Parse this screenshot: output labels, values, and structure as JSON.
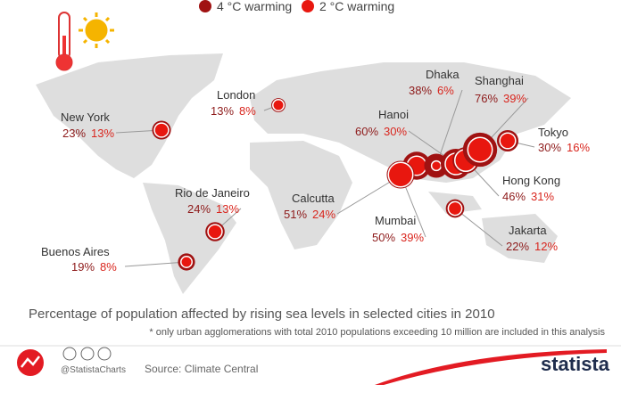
{
  "legend": [
    {
      "label": "4 °C warming",
      "color": "#a01212"
    },
    {
      "label": "2 °C warming",
      "color": "#e8170f"
    }
  ],
  "cities": [
    {
      "name": "New York",
      "values": [
        23,
        13
      ],
      "value_labels": [
        "23%",
        "13%"
      ]
    },
    {
      "name": "London",
      "values": [
        13,
        8
      ],
      "value_labels": [
        "13%",
        "8%"
      ]
    },
    {
      "name": "Rio de Janeiro",
      "values": [
        24,
        13
      ],
      "value_labels": [
        "24%",
        "13%"
      ]
    },
    {
      "name": "Buenos Aires",
      "values": [
        19,
        8
      ],
      "value_labels": [
        "19%",
        "8%"
      ]
    },
    {
      "name": "Calcutta",
      "values": [
        51,
        24
      ],
      "value_labels": [
        "51%",
        "24%"
      ]
    },
    {
      "name": "Mumbai",
      "values": [
        50,
        39
      ],
      "value_labels": [
        "50%",
        "39%"
      ]
    },
    {
      "name": "Dhaka",
      "values": [
        38,
        6
      ],
      "value_labels": [
        "38%",
        "6%"
      ]
    },
    {
      "name": "Hanoi",
      "values": [
        60,
        30
      ],
      "value_labels": [
        "60%",
        "30%"
      ]
    },
    {
      "name": "Hong Kong",
      "values": [
        46,
        31
      ],
      "value_labels": [
        "46%",
        "31%"
      ]
    },
    {
      "name": "Shanghai",
      "values": [
        76,
        39
      ],
      "value_labels": [
        "76%",
        "39%"
      ]
    },
    {
      "name": "Tokyo",
      "values": [
        30,
        16
      ],
      "value_labels": [
        "30%",
        "16%"
      ]
    },
    {
      "name": "Jakarta",
      "values": [
        22,
        12
      ],
      "value_labels": [
        "22%",
        "12%"
      ]
    }
  ],
  "title": "Percentage of population affected by rising sea levels in selected cities in 2010",
  "footnote": "* only urban agglomerations with total 2010 populations exceeding 10 million are included in this analysis",
  "footer": {
    "handle": "@StatistaCharts",
    "source": "Source: Climate Central",
    "brand": "statista"
  }
}
